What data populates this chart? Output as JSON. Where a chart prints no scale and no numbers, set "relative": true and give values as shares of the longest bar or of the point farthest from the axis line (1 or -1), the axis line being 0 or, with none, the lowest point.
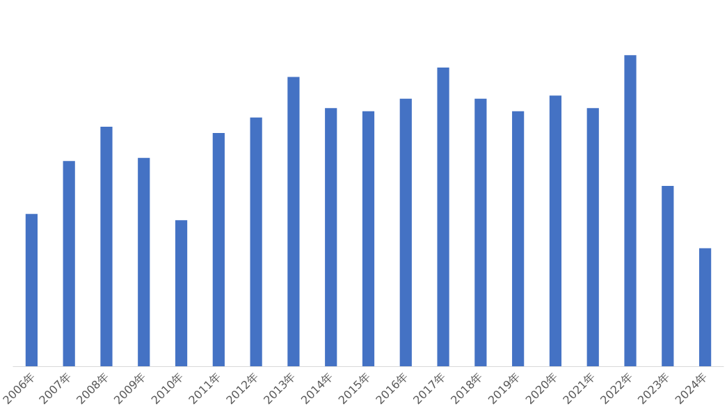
{
  "chart_data": {
    "type": "bar",
    "relative": true,
    "categories": [
      "2006年",
      "2007年",
      "2008年",
      "2009年",
      "2010年",
      "2011年",
      "2012年",
      "2013年",
      "2014年",
      "2015年",
      "2016年",
      "2017年",
      "2018年",
      "2019年",
      "2020年",
      "2021年",
      "2022年",
      "2023年",
      "2024年"
    ],
    "values": [
      0.49,
      0.66,
      0.77,
      0.67,
      0.47,
      0.75,
      0.8,
      0.93,
      0.83,
      0.82,
      0.86,
      0.96,
      0.86,
      0.82,
      0.87,
      0.83,
      1,
      0.58,
      0.38
    ],
    "color": "#4472c4",
    "grid": false
  }
}
